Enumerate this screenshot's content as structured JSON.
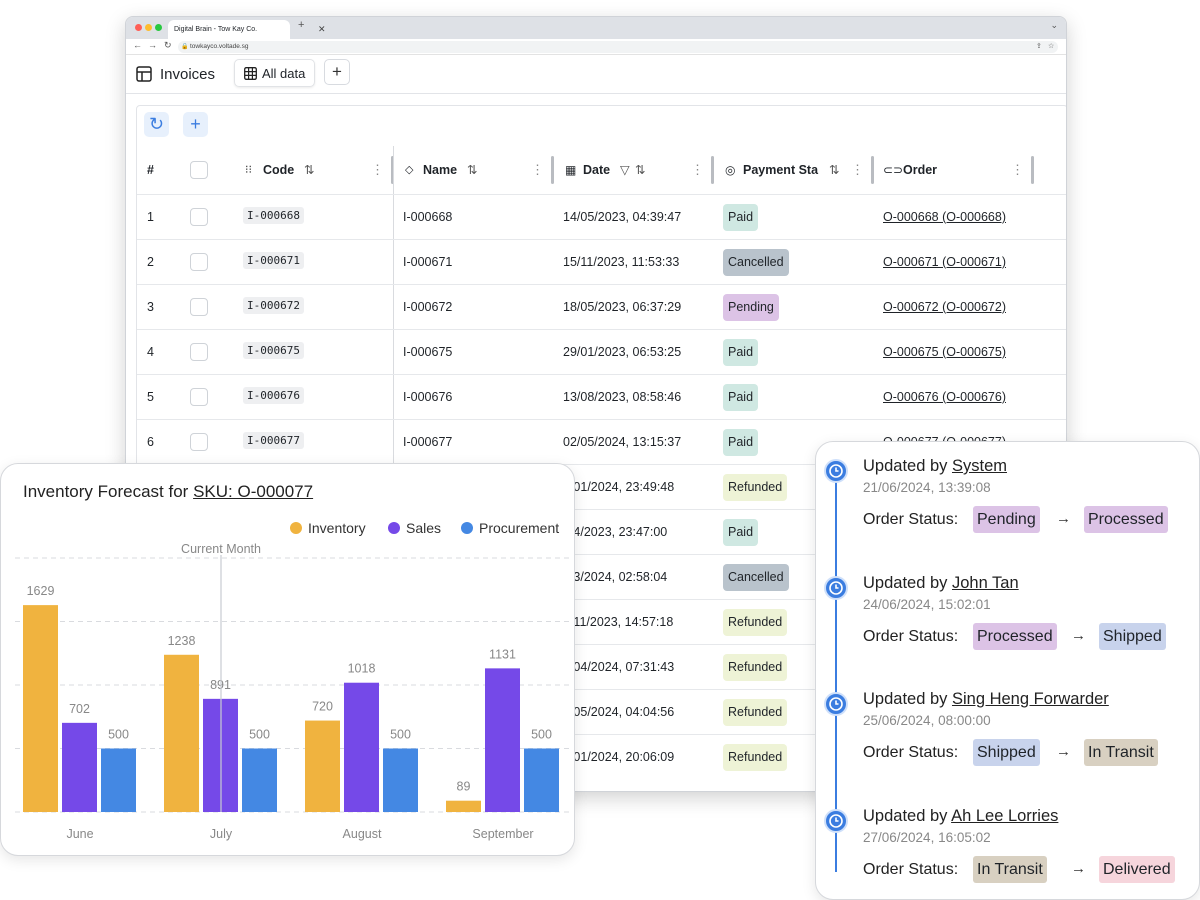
{
  "browser": {
    "tab_title": "Digital Brain - Tow Kay Co.",
    "url": "towkayco.voltade.sg"
  },
  "app": {
    "title": "Invoices",
    "view_tab": "All data",
    "add_view": "+"
  },
  "table": {
    "columns": {
      "index": "#",
      "code": "Code",
      "name": "Name",
      "date": "Date",
      "payment_status": "Payment Sta",
      "order": "Order"
    },
    "rows": [
      {
        "idx": "1",
        "code": "I-000668",
        "name": "I-000668",
        "date": "14/05/2023, 04:39:47",
        "status": "Paid",
        "order": "O-000668 (O-000668)"
      },
      {
        "idx": "2",
        "code": "I-000671",
        "name": "I-000671",
        "date": "15/11/2023, 11:53:33",
        "status": "Cancelled",
        "order": "O-000671 (O-000671)"
      },
      {
        "idx": "3",
        "code": "I-000672",
        "name": "I-000672",
        "date": "18/05/2023, 06:37:29",
        "status": "Pending",
        "order": "O-000672 (O-000672)"
      },
      {
        "idx": "4",
        "code": "I-000675",
        "name": "I-000675",
        "date": "29/01/2023, 06:53:25",
        "status": "Paid",
        "order": "O-000675 (O-000675)"
      },
      {
        "idx": "5",
        "code": "I-000676",
        "name": "I-000676",
        "date": "13/08/2023, 08:58:46",
        "status": "Paid",
        "order": "O-000676 (O-000676)"
      },
      {
        "idx": "6",
        "code": "I-000677",
        "name": "I-000677",
        "date": "02/05/2024, 13:15:37",
        "status": "Paid",
        "order": "O-000677 (O-000677)"
      },
      {
        "idx": "",
        "code": "",
        "name": "",
        "date": "9/01/2024, 23:49:48",
        "status": "Refunded",
        "order": ""
      },
      {
        "idx": "",
        "code": "",
        "name": "",
        "date": "/04/2023, 23:47:00",
        "status": "Paid",
        "order": ""
      },
      {
        "idx": "",
        "code": "",
        "name": "",
        "date": "/03/2024, 02:58:04",
        "status": "Cancelled",
        "order": ""
      },
      {
        "idx": "",
        "code": "",
        "name": "",
        "date": "4/11/2023, 14:57:18",
        "status": "Refunded",
        "order": ""
      },
      {
        "idx": "",
        "code": "",
        "name": "",
        "date": "7/04/2024, 07:31:43",
        "status": "Refunded",
        "order": ""
      },
      {
        "idx": "",
        "code": "",
        "name": "",
        "date": "3/05/2024, 04:04:56",
        "status": "Refunded",
        "order": ""
      },
      {
        "idx": "",
        "code": "",
        "name": "",
        "date": "7/01/2024, 20:06:09",
        "status": "Refunded",
        "order": ""
      }
    ],
    "status_colors": {
      "Paid": "#cfe8e2",
      "Cancelled": "#b9c3cc",
      "Pending": "#dcc3e6",
      "Refunded": "#eef3d6"
    }
  },
  "chart": {
    "title_prefix": "Inventory Forecast for ",
    "title_link": "SKU: O-000077",
    "marker_label": "Current Month"
  },
  "chart_data": {
    "type": "bar",
    "categories": [
      "June",
      "July",
      "August",
      "September"
    ],
    "series": [
      {
        "name": "Inventory",
        "color": "#f0b33f",
        "values": [
          1629,
          1238,
          720,
          89
        ]
      },
      {
        "name": "Sales",
        "color": "#7549e8",
        "values": [
          702,
          891,
          1018,
          1131
        ]
      },
      {
        "name": "Procurement",
        "color": "#4488e3",
        "values": [
          500,
          500,
          500,
          500
        ]
      }
    ],
    "ylim": [
      0,
      2000
    ],
    "grid": true,
    "legend": "top-right",
    "marker_category": "July"
  },
  "timeline": {
    "status_label": "Order Status:",
    "updated_by_label": "Updated by ",
    "entries": [
      {
        "user": "System",
        "date": "21/06/2024, 13:39:08",
        "from": "Pending",
        "to": "Processed",
        "from_color": "#dcc3e6",
        "to_color": "#dcc3e6"
      },
      {
        "user": "John Tan",
        "date": "24/06/2024, 15:02:01",
        "from": "Processed",
        "to": "Shipped",
        "from_color": "#dcc3e6",
        "to_color": "#c8d3ec"
      },
      {
        "user": "Sing Heng Forwarder",
        "date": "25/06/2024, 08:00:00",
        "from": "Shipped",
        "to": "In Transit",
        "from_color": "#c8d3ec",
        "to_color": "#d8d0c1"
      },
      {
        "user": "Ah Lee Lorries",
        "date": "27/06/2024, 16:05:02",
        "from": "In Transit",
        "to": "Delivered",
        "from_color": "#d8d0c1",
        "to_color": "#f6d5dc"
      }
    ]
  }
}
